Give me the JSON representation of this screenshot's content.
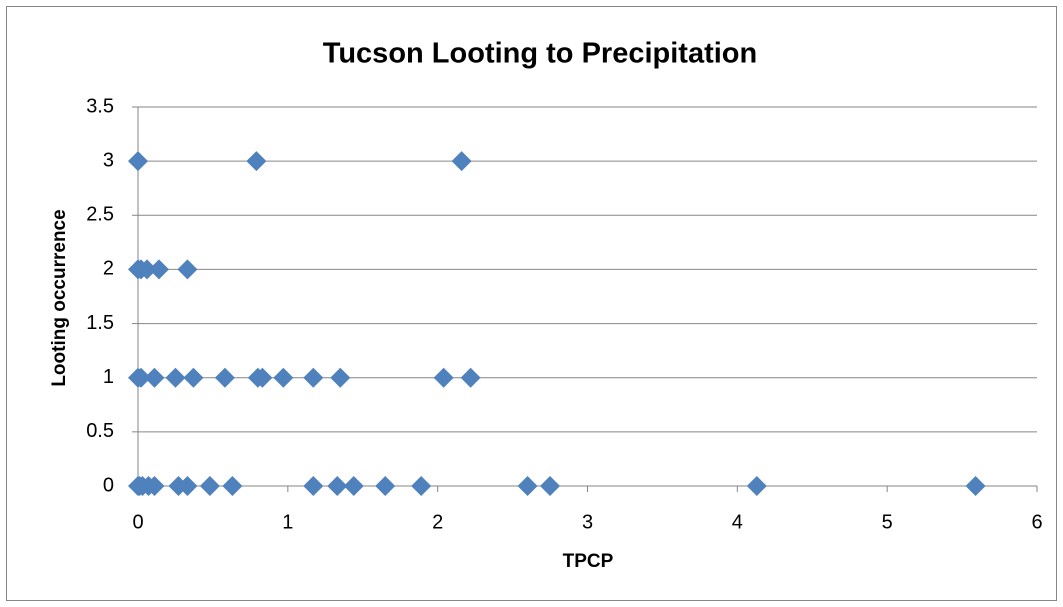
{
  "chart_data": {
    "type": "scatter",
    "title": "Tucson Looting to Precipitation",
    "x_label": "TPCP",
    "y_label": "Looting occurrence",
    "x": [
      0,
      0.79,
      2.16,
      0,
      0.02,
      0.06,
      0.14,
      0.33,
      0,
      0.02,
      0.11,
      0.25,
      0.37,
      0.58,
      0.8,
      0.83,
      0.97,
      1.17,
      1.35,
      2.04,
      2.22,
      0,
      0.01,
      0.03,
      0.07,
      0.11,
      0.27,
      0.33,
      0.48,
      0.63,
      1.17,
      1.33,
      1.44,
      1.65,
      1.89,
      2.6,
      2.75,
      4.13,
      5.59
    ],
    "series": [
      {
        "color": "#4f81bd",
        "values": [
          3,
          3,
          3,
          2,
          2,
          2,
          2,
          2,
          1,
          1,
          1,
          1,
          1,
          1,
          1,
          1,
          1,
          1,
          1,
          1,
          1,
          0,
          0,
          0,
          0,
          0,
          0,
          0,
          0,
          0,
          0,
          0,
          0,
          0,
          0,
          0,
          0,
          0,
          0
        ]
      }
    ],
    "xlim": [
      0,
      6
    ],
    "xticks": [
      0,
      1,
      2,
      3,
      4,
      5,
      6
    ],
    "ylim": [
      0,
      3.5
    ],
    "yticks": [
      0,
      0.5,
      1,
      1.5,
      2,
      2.5,
      3,
      3.5
    ],
    "grid": true
  }
}
